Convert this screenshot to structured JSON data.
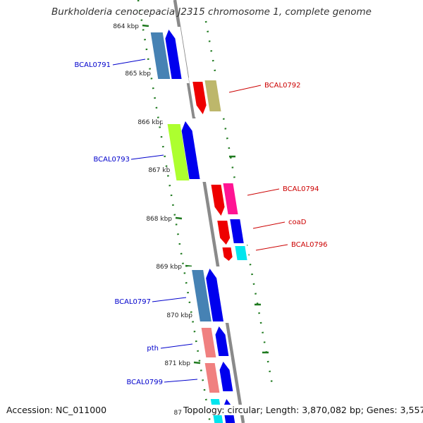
{
  "title": "Burkholderia cenocepacia J2315 chromosome 1, complete genome",
  "accession_text": "Accession: NC_011000",
  "topology_text": "Topology: circular; Length: 3,870,082 bp; Genes: 3,557",
  "partial_tick_label": "87",
  "colors": {
    "backbone": "#8a8a8a",
    "tick": "#1f7a1f",
    "forward_label": "#0000cc",
    "reverse_label": "#cc0000",
    "blue": "#0000ee",
    "steelblue": "#4682b4",
    "red": "#ee0000",
    "khaki": "#bdb76b",
    "lime": "#adff2f",
    "magenta": "#ff1493",
    "cyan": "#00e5ee",
    "salmon": "#f08080"
  },
  "kbp_ticks": [
    {
      "label": "864 kbp",
      "kbp": 864
    },
    {
      "label": "865 kbp",
      "kbp": 865
    },
    {
      "label": "866 kbp",
      "kbp": 866
    },
    {
      "label": "867 kbp",
      "kbp": 867
    },
    {
      "label": "868 kbp",
      "kbp": 868
    },
    {
      "label": "869 kbp",
      "kbp": 869
    },
    {
      "label": "870 kbp",
      "kbp": 870
    },
    {
      "label": "871 kbp",
      "kbp": 871
    }
  ],
  "genes": [
    {
      "label": "BCAL0791",
      "strand": "forward",
      "color": "steelblue"
    },
    {
      "label": "BCAL0792",
      "strand": "reverse",
      "color": "khaki"
    },
    {
      "label": "BCAL0793",
      "strand": "forward",
      "color": "lime"
    },
    {
      "label": "BCAL0794",
      "strand": "reverse",
      "color": "magenta"
    },
    {
      "label": "coaD",
      "strand": "reverse",
      "color": "blue"
    },
    {
      "label": "BCAL0796",
      "strand": "reverse",
      "color": "cyan"
    },
    {
      "label": "BCAL0797",
      "strand": "forward",
      "color": "steelblue"
    },
    {
      "label": "pth",
      "strand": "forward",
      "color": "salmon"
    },
    {
      "label": "BCAL0799",
      "strand": "forward",
      "color": "salmon"
    }
  ]
}
